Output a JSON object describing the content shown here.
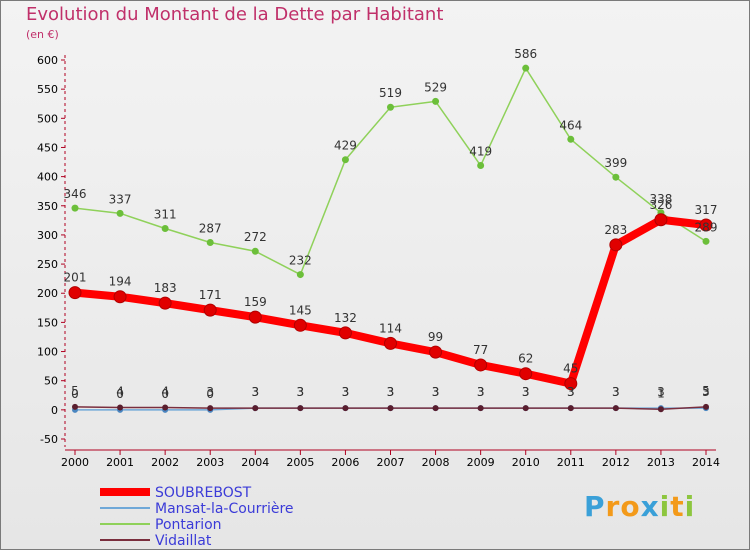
{
  "title": "Evolution du Montant de la Dette par Habitant",
  "unit": "(en €)",
  "chart_data": {
    "type": "line",
    "title": "Evolution du Montant de la Dette par Habitant",
    "ylabel": "(en €)",
    "ylim": [
      -50,
      600
    ],
    "yticks": [
      -50,
      0,
      50,
      100,
      150,
      200,
      250,
      300,
      350,
      400,
      450,
      500,
      550,
      600
    ],
    "x": [
      "2000",
      "2001",
      "2002",
      "2003",
      "2004",
      "2005",
      "2006",
      "2007",
      "2008",
      "2009",
      "2010",
      "2011",
      "2012",
      "2013",
      "2014"
    ],
    "grid": false,
    "legend": "bottom-left",
    "series": [
      {
        "name": "SOUBREBOST",
        "color": "#ff0000",
        "values": [
          201,
          194,
          183,
          171,
          159,
          145,
          132,
          114,
          99,
          77,
          62,
          45,
          283,
          326,
          317
        ],
        "labels": [
          "201",
          "194",
          "183",
          "171",
          "159",
          "145",
          "132",
          "114",
          "99",
          "77",
          "62",
          "45",
          "283",
          "326",
          "317"
        ]
      },
      {
        "name": "Mansat-la-Courrière",
        "color": "#6fa8d8",
        "values": [
          0,
          0,
          0,
          0,
          3,
          3,
          3,
          3,
          3,
          3,
          3,
          3,
          3,
          3,
          3
        ],
        "labels": [
          "0",
          "0",
          "0",
          "0",
          "3",
          "3",
          "3",
          "3",
          "3",
          "3",
          "3",
          "3",
          "3",
          "3",
          "3"
        ]
      },
      {
        "name": "Pontarion",
        "color": "#8fd15a",
        "values": [
          346,
          337,
          311,
          287,
          272,
          232,
          429,
          519,
          529,
          419,
          586,
          464,
          399,
          338,
          289
        ],
        "labels": [
          "346",
          "337",
          "311",
          "287",
          "272",
          "232",
          "429",
          "519",
          "529",
          "419",
          "586",
          "464",
          "399",
          "338",
          "289"
        ]
      },
      {
        "name": "Vidaillat",
        "color": "#7a2e3e",
        "values": [
          5,
          4,
          4,
          3,
          3,
          3,
          3,
          3,
          3,
          3,
          3,
          3,
          3,
          1,
          5
        ],
        "labels": [
          "5",
          "4",
          "4",
          "3",
          "3",
          "3",
          "3",
          "3",
          "3",
          "3",
          "3",
          "3",
          "3",
          "1",
          "5"
        ]
      }
    ]
  },
  "logo": {
    "text": "Proxiti",
    "letters": [
      "P",
      "r",
      "o",
      "x",
      "i",
      "t",
      "i"
    ],
    "colors": [
      "#3aa0d8",
      "#f39a1a",
      "#f39a1a",
      "#3aa0d8",
      "#8dc63f",
      "#f39a1a",
      "#8dc63f"
    ]
  }
}
